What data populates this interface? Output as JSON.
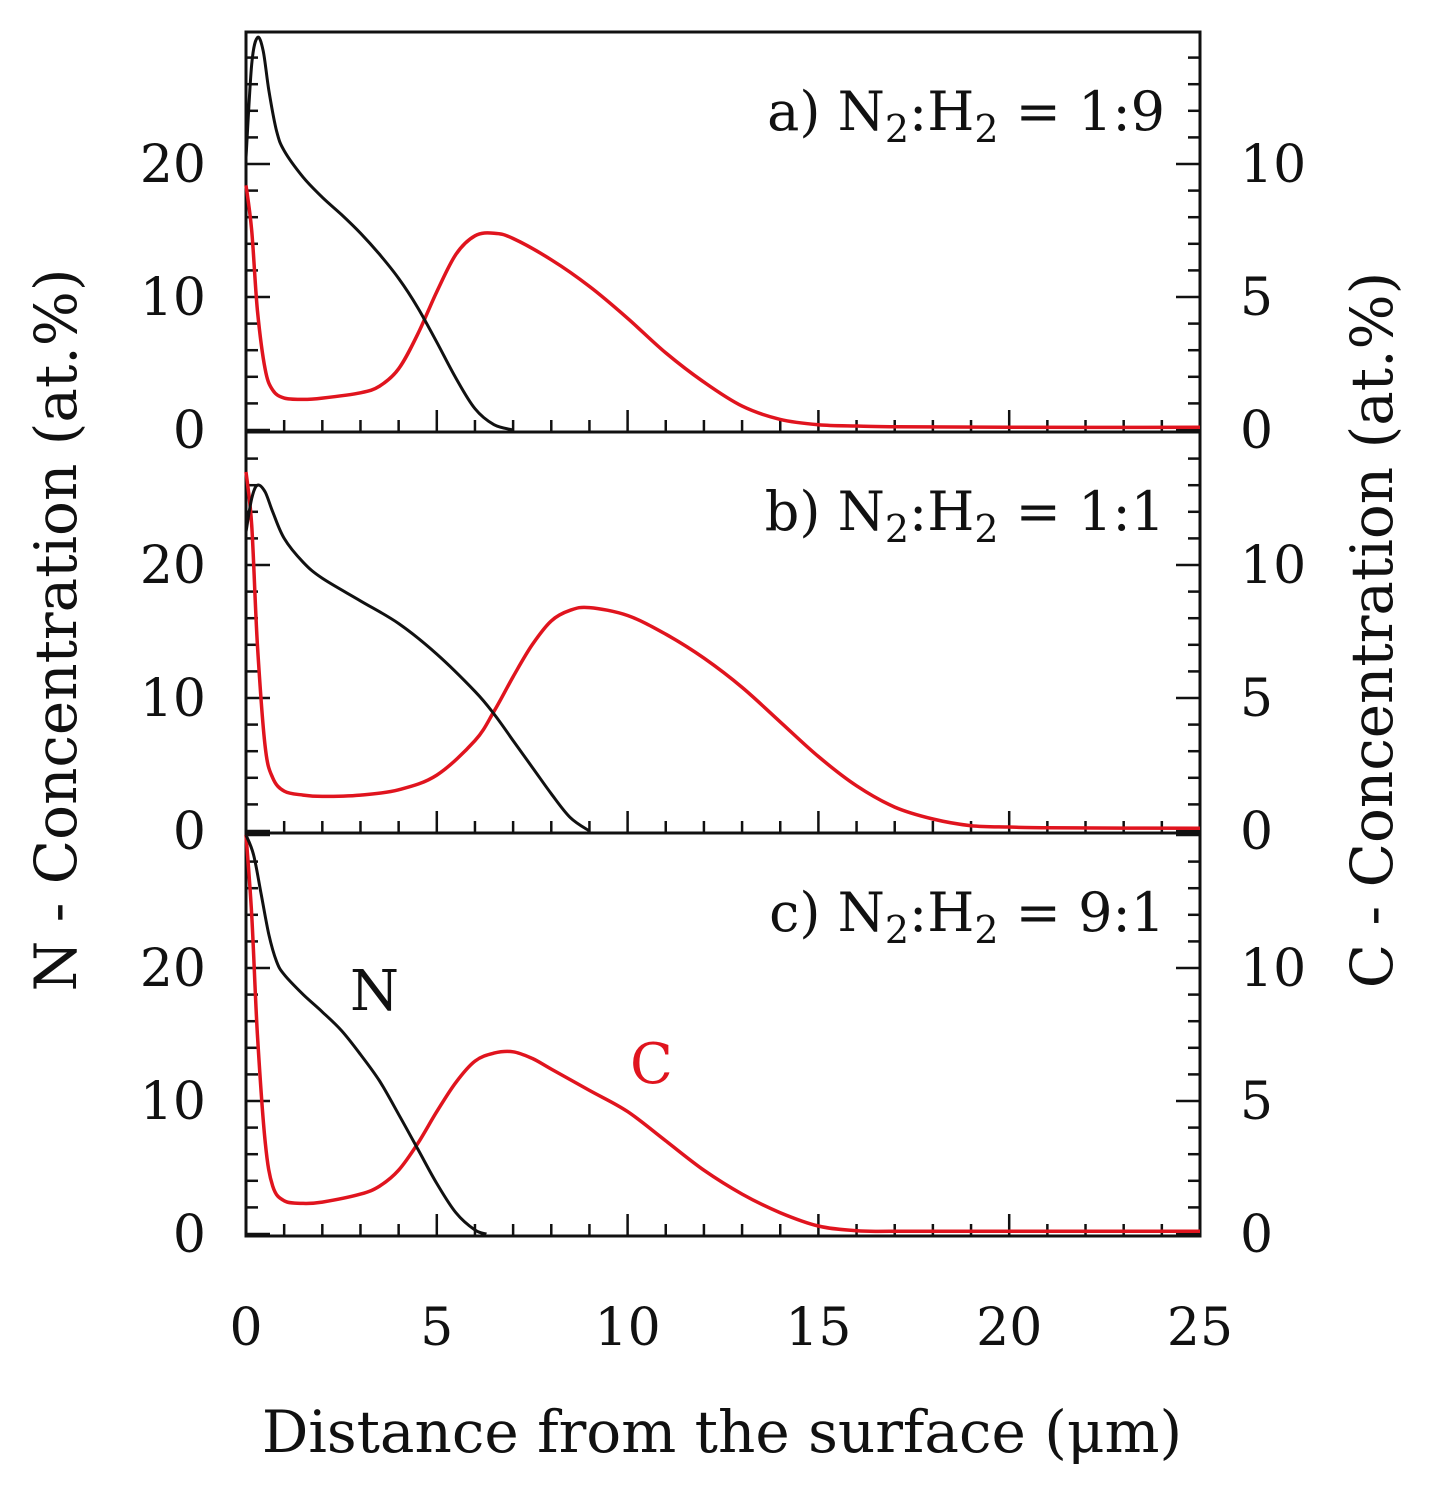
{
  "chart_data": {
    "type": "line",
    "xlabel": "Distance from the surface (μm)",
    "ylabel_left": "N - Concentration (at.%)",
    "ylabel_right": "C - Concentration (at.%)",
    "xlim": [
      0,
      25
    ],
    "x_ticks": [
      "0",
      "5",
      "10",
      "15",
      "20",
      "25"
    ],
    "ylim_left": [
      0,
      30
    ],
    "y_ticks_left": [
      "0",
      "10",
      "20"
    ],
    "ylim_right": [
      0,
      15
    ],
    "y_ticks_right": [
      "0",
      "5",
      "10"
    ],
    "series_labels": {
      "N": "N",
      "C": "C"
    },
    "colors": {
      "N": "#111111",
      "C": "#e0141e"
    },
    "panels": [
      {
        "label_prefix": "a) N",
        "label_mid": ":H",
        "label_ratio": " = 1:9",
        "subscript": "2",
        "N": {
          "x": [
            0,
            0.15,
            0.3,
            0.45,
            0.6,
            0.8,
            1.0,
            1.5,
            2.0,
            2.5,
            3.0,
            3.5,
            4.0,
            4.5,
            5.0,
            5.5,
            6.0,
            6.5,
            7.0
          ],
          "y": [
            20.5,
            27.5,
            29.5,
            28.5,
            25.5,
            22.5,
            21.0,
            19.0,
            17.5,
            16.2,
            14.8,
            13.2,
            11.4,
            9.2,
            6.6,
            3.9,
            1.6,
            0.4,
            0.0
          ]
        },
        "C": {
          "x": [
            0,
            0.15,
            0.3,
            0.5,
            0.7,
            1.0,
            1.5,
            2.0,
            3.0,
            3.5,
            4.0,
            4.5,
            5.0,
            5.5,
            6.0,
            6.5,
            7.0,
            8.0,
            9.0,
            10.0,
            11.0,
            12.0,
            13.0,
            14.0,
            15.0,
            16.0,
            17.0,
            20.0,
            25.0
          ],
          "y": [
            9.2,
            7.5,
            4.5,
            2.3,
            1.5,
            1.2,
            1.15,
            1.2,
            1.4,
            1.65,
            2.3,
            3.6,
            5.2,
            6.6,
            7.3,
            7.4,
            7.2,
            6.4,
            5.4,
            4.2,
            2.9,
            1.8,
            0.9,
            0.4,
            0.2,
            0.15,
            0.12,
            0.1,
            0.1
          ]
        }
      },
      {
        "label_prefix": "b) N",
        "label_mid": ":H",
        "label_ratio": " = 1:1",
        "subscript": "2",
        "N": {
          "x": [
            0,
            0.15,
            0.3,
            0.5,
            0.7,
            1.0,
            1.5,
            2.0,
            3.0,
            4.0,
            5.0,
            6.0,
            6.5,
            7.0,
            7.5,
            8.0,
            8.5,
            9.0
          ],
          "y": [
            22.5,
            25.0,
            26.0,
            25.5,
            24.0,
            22.0,
            20.2,
            19.0,
            17.3,
            15.6,
            13.3,
            10.5,
            8.8,
            6.8,
            4.8,
            2.8,
            1.0,
            0.0
          ]
        },
        "C": {
          "x": [
            0,
            0.15,
            0.3,
            0.5,
            0.7,
            1.0,
            1.5,
            2.0,
            3.0,
            4.0,
            5.0,
            6.0,
            6.5,
            7.0,
            7.5,
            8.0,
            8.5,
            9.0,
            10.0,
            11.0,
            12.0,
            13.0,
            14.0,
            15.0,
            16.0,
            17.0,
            18.0,
            19.0,
            20.0,
            21.0,
            25.0
          ],
          "y": [
            13.5,
            11.5,
            7.0,
            3.2,
            2.0,
            1.5,
            1.35,
            1.3,
            1.35,
            1.55,
            2.1,
            3.4,
            4.5,
            5.8,
            7.0,
            7.9,
            8.3,
            8.4,
            8.1,
            7.4,
            6.5,
            5.4,
            4.1,
            2.8,
            1.7,
            0.9,
            0.45,
            0.2,
            0.15,
            0.12,
            0.1
          ]
        }
      },
      {
        "label_prefix": "c) N",
        "label_mid": ":H",
        "label_ratio": " = 9:1",
        "subscript": "2",
        "N": {
          "x": [
            0,
            0.2,
            0.4,
            0.6,
            0.8,
            1.0,
            1.5,
            2.0,
            2.5,
            3.0,
            3.5,
            4.0,
            4.5,
            5.0,
            5.5,
            6.0,
            6.3
          ],
          "y": [
            30.0,
            28.5,
            25.5,
            22.5,
            20.5,
            19.5,
            18.0,
            16.7,
            15.3,
            13.5,
            11.5,
            9.0,
            6.4,
            3.8,
            1.6,
            0.3,
            0.0
          ]
        },
        "C": {
          "x": [
            0,
            0.15,
            0.3,
            0.5,
            0.7,
            1.0,
            1.5,
            2.0,
            3.0,
            3.5,
            4.0,
            4.5,
            5.0,
            5.5,
            6.0,
            6.5,
            7.0,
            7.5,
            8.0,
            9.0,
            10.0,
            11.0,
            12.0,
            13.0,
            14.0,
            15.0,
            16.0,
            17.0,
            20.0,
            25.0
          ],
          "y": [
            15.0,
            12.0,
            7.5,
            3.5,
            1.8,
            1.25,
            1.15,
            1.2,
            1.5,
            1.8,
            2.4,
            3.4,
            4.6,
            5.7,
            6.5,
            6.8,
            6.85,
            6.6,
            6.2,
            5.4,
            4.6,
            3.5,
            2.4,
            1.5,
            0.8,
            0.3,
            0.12,
            0.1,
            0.1,
            0.1
          ]
        }
      }
    ]
  }
}
